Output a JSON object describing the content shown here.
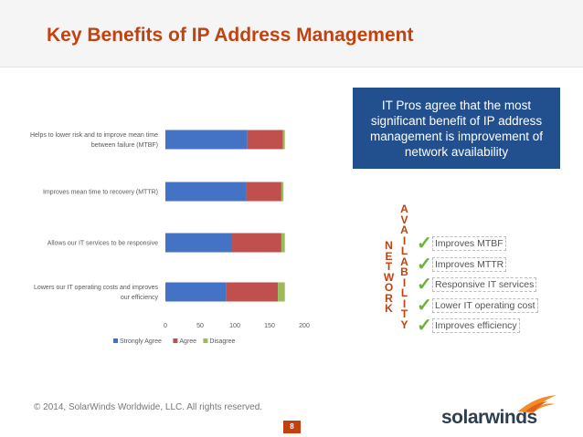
{
  "slide": {
    "title": "Key Benefits of IP Address Management",
    "callout": "IT Pros agree that the most significant benefit of IP address management is improvement of network availability",
    "footer": "© 2014, SolarWinds Worldwide, LLC.  All rights reserved.",
    "page_number": "8",
    "logo_text": "solarwinds"
  },
  "network_word": [
    "N",
    "E",
    "T",
    "W",
    "O",
    "R",
    "K"
  ],
  "availability_word": [
    "A",
    "V",
    "A",
    "I",
    "L",
    "A",
    "B",
    "I",
    "L",
    "I",
    "T",
    "Y"
  ],
  "benefits": [
    {
      "check": "✓",
      "label": "Improves MTBF"
    },
    {
      "check": "✓",
      "label": "Improves MTTR"
    },
    {
      "check": "✓",
      "label": "Responsive IT services"
    },
    {
      "check": "✓",
      "label": "Lower IT operating cost"
    },
    {
      "check": "✓",
      "label": "Improves efficiency"
    }
  ],
  "colors": {
    "strongly_agree": "#4472c4",
    "agree": "#c0504d",
    "disagree": "#9bbb59",
    "accent": "#c2420f",
    "callout_bg": "#22508f"
  },
  "chart_data": {
    "type": "bar",
    "orientation": "horizontal",
    "stacked": true,
    "categories": [
      "Helps to lower risk and to improve mean time between failure (MTBF)",
      "Improves mean time to recovery (MTTR)",
      "Allows our IT services to be responsive",
      "Lowers our IT operating costs and improves our efficiency"
    ],
    "series": [
      {
        "name": "Strongly Agree",
        "values": [
          118,
          117,
          96,
          87
        ]
      },
      {
        "name": "Agree",
        "values": [
          51,
          50,
          71,
          75
        ]
      },
      {
        "name": "Disagree",
        "values": [
          3,
          3,
          5,
          10
        ]
      }
    ],
    "xlim": [
      0,
      200
    ],
    "xticks": [
      0,
      50,
      100,
      150,
      200
    ],
    "legend": "bottom",
    "grid": false
  }
}
